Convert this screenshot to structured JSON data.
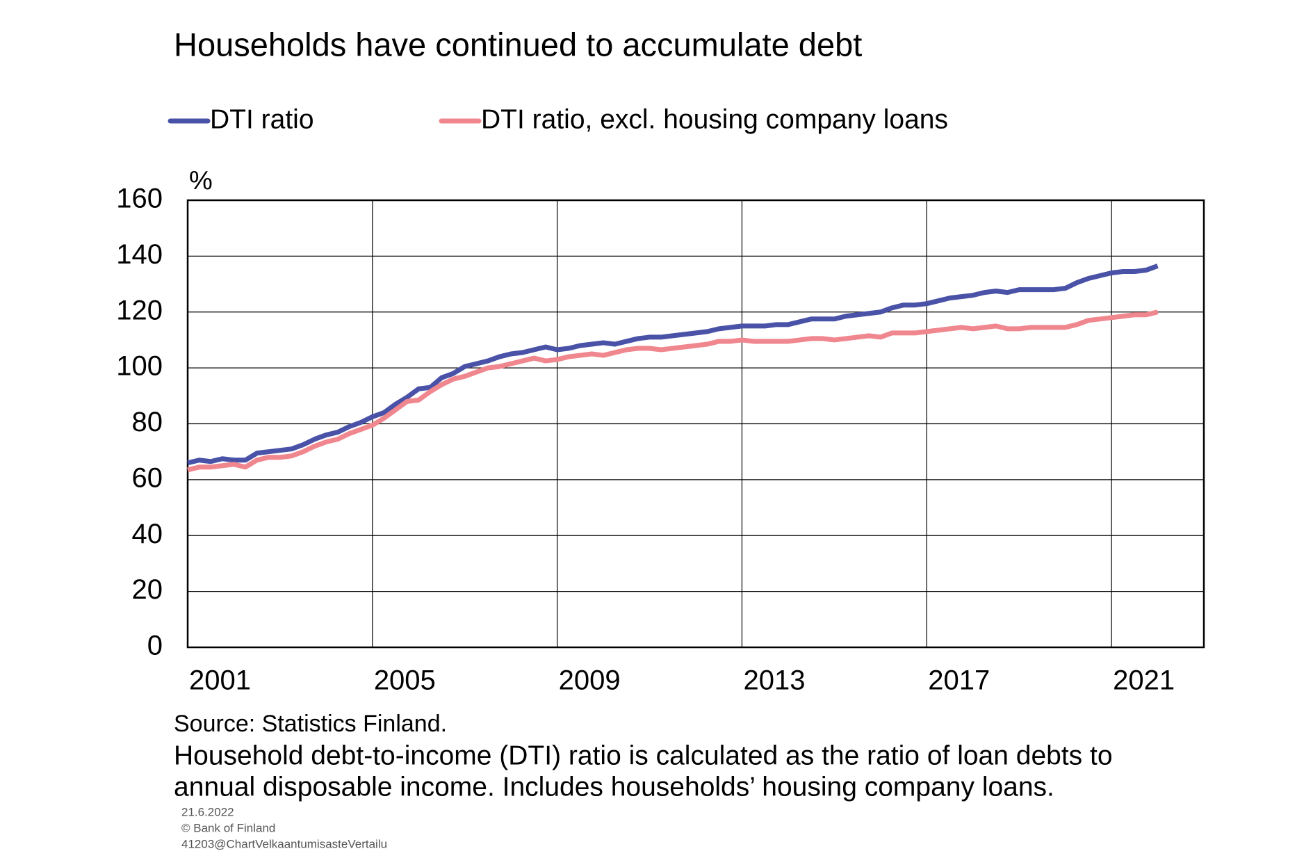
{
  "chart_data": {
    "type": "line",
    "title": "Households have continued to accumulate debt",
    "y_label": "%",
    "categories": [
      "2001",
      null,
      null,
      null,
      null,
      null,
      null,
      null,
      null,
      null,
      null,
      null,
      null,
      null,
      null,
      null,
      "2005",
      null,
      null,
      null,
      null,
      null,
      null,
      null,
      null,
      null,
      null,
      null,
      null,
      null,
      null,
      null,
      "2009",
      null,
      null,
      null,
      null,
      null,
      null,
      null,
      null,
      null,
      null,
      null,
      null,
      null,
      null,
      null,
      "2013",
      null,
      null,
      null,
      null,
      null,
      null,
      null,
      null,
      null,
      null,
      null,
      null,
      null,
      null,
      null,
      "2017",
      null,
      null,
      null,
      null,
      null,
      null,
      null,
      null,
      null,
      null,
      null,
      null,
      null,
      null,
      null,
      "2021",
      null,
      null,
      null,
      null,
      null,
      null,
      null
    ],
    "series": [
      {
        "name": "DTI ratio",
        "color": "#4a52a8",
        "values": [
          66,
          67,
          66.5,
          67.5,
          67,
          67,
          69.5,
          70,
          70.5,
          71,
          72.5,
          74.5,
          76,
          77,
          79,
          80.5,
          82.5,
          84,
          87,
          89.5,
          92.5,
          93,
          96.5,
          98,
          100.5,
          101.5,
          102.5,
          104,
          105,
          105.5,
          106.5,
          107.5,
          106.5,
          107,
          108,
          108.5,
          109,
          108.5,
          109.5,
          110.5,
          111,
          111,
          111.5,
          112,
          112.5,
          113,
          114,
          114.5,
          115,
          115,
          115,
          115.5,
          115.5,
          116.5,
          117.5,
          117.5,
          117.5,
          118.5,
          119,
          119.5,
          120,
          121.5,
          122.5,
          122.5,
          123,
          124,
          125,
          125.5,
          126,
          127,
          127.5,
          127,
          128,
          128,
          128,
          128,
          128.5,
          130.5,
          132,
          133,
          134,
          134.5,
          134.5,
          135,
          136.5,
          null,
          null,
          null
        ]
      },
      {
        "name": "DTI ratio, excl. housing company loans",
        "color": "#f0868e",
        "values": [
          63.5,
          64.5,
          64.5,
          65,
          65.5,
          64.5,
          67,
          68,
          68,
          68.5,
          70,
          72,
          73.5,
          74.5,
          76.5,
          78,
          79.5,
          82,
          85,
          88,
          88.5,
          91.5,
          94,
          96,
          97,
          98.5,
          100,
          100.5,
          101.5,
          102.5,
          103.5,
          102.5,
          103,
          104,
          104.5,
          105,
          104.5,
          105.5,
          106.5,
          107,
          107,
          106.5,
          107,
          107.5,
          108,
          108.5,
          109.5,
          109.5,
          110,
          109.5,
          109.5,
          109.5,
          109.5,
          110,
          110.5,
          110.5,
          110,
          110.5,
          111,
          111.5,
          111,
          112.5,
          112.5,
          112.5,
          113,
          113.5,
          114,
          114.5,
          114,
          114.5,
          115,
          114,
          114,
          114.5,
          114.5,
          114.5,
          114.5,
          115.5,
          117,
          117.5,
          118,
          118.5,
          119,
          119,
          120,
          null,
          null,
          null
        ]
      }
    ],
    "ylim": [
      0,
      160
    ],
    "yticks": [
      0,
      20,
      40,
      60,
      80,
      100,
      120,
      140,
      160
    ],
    "grid": true,
    "source": "Source: Statistics Finland.",
    "note": [
      "Household debt-to-income (DTI) ratio is calculated as the ratio of loan debts to",
      "annual disposable income. Includes households’ housing company loans."
    ]
  },
  "footer": [
    "21.6.2022",
    "© Bank of Finland",
    "41203@ChartVelkaantumisasteVertailu"
  ]
}
